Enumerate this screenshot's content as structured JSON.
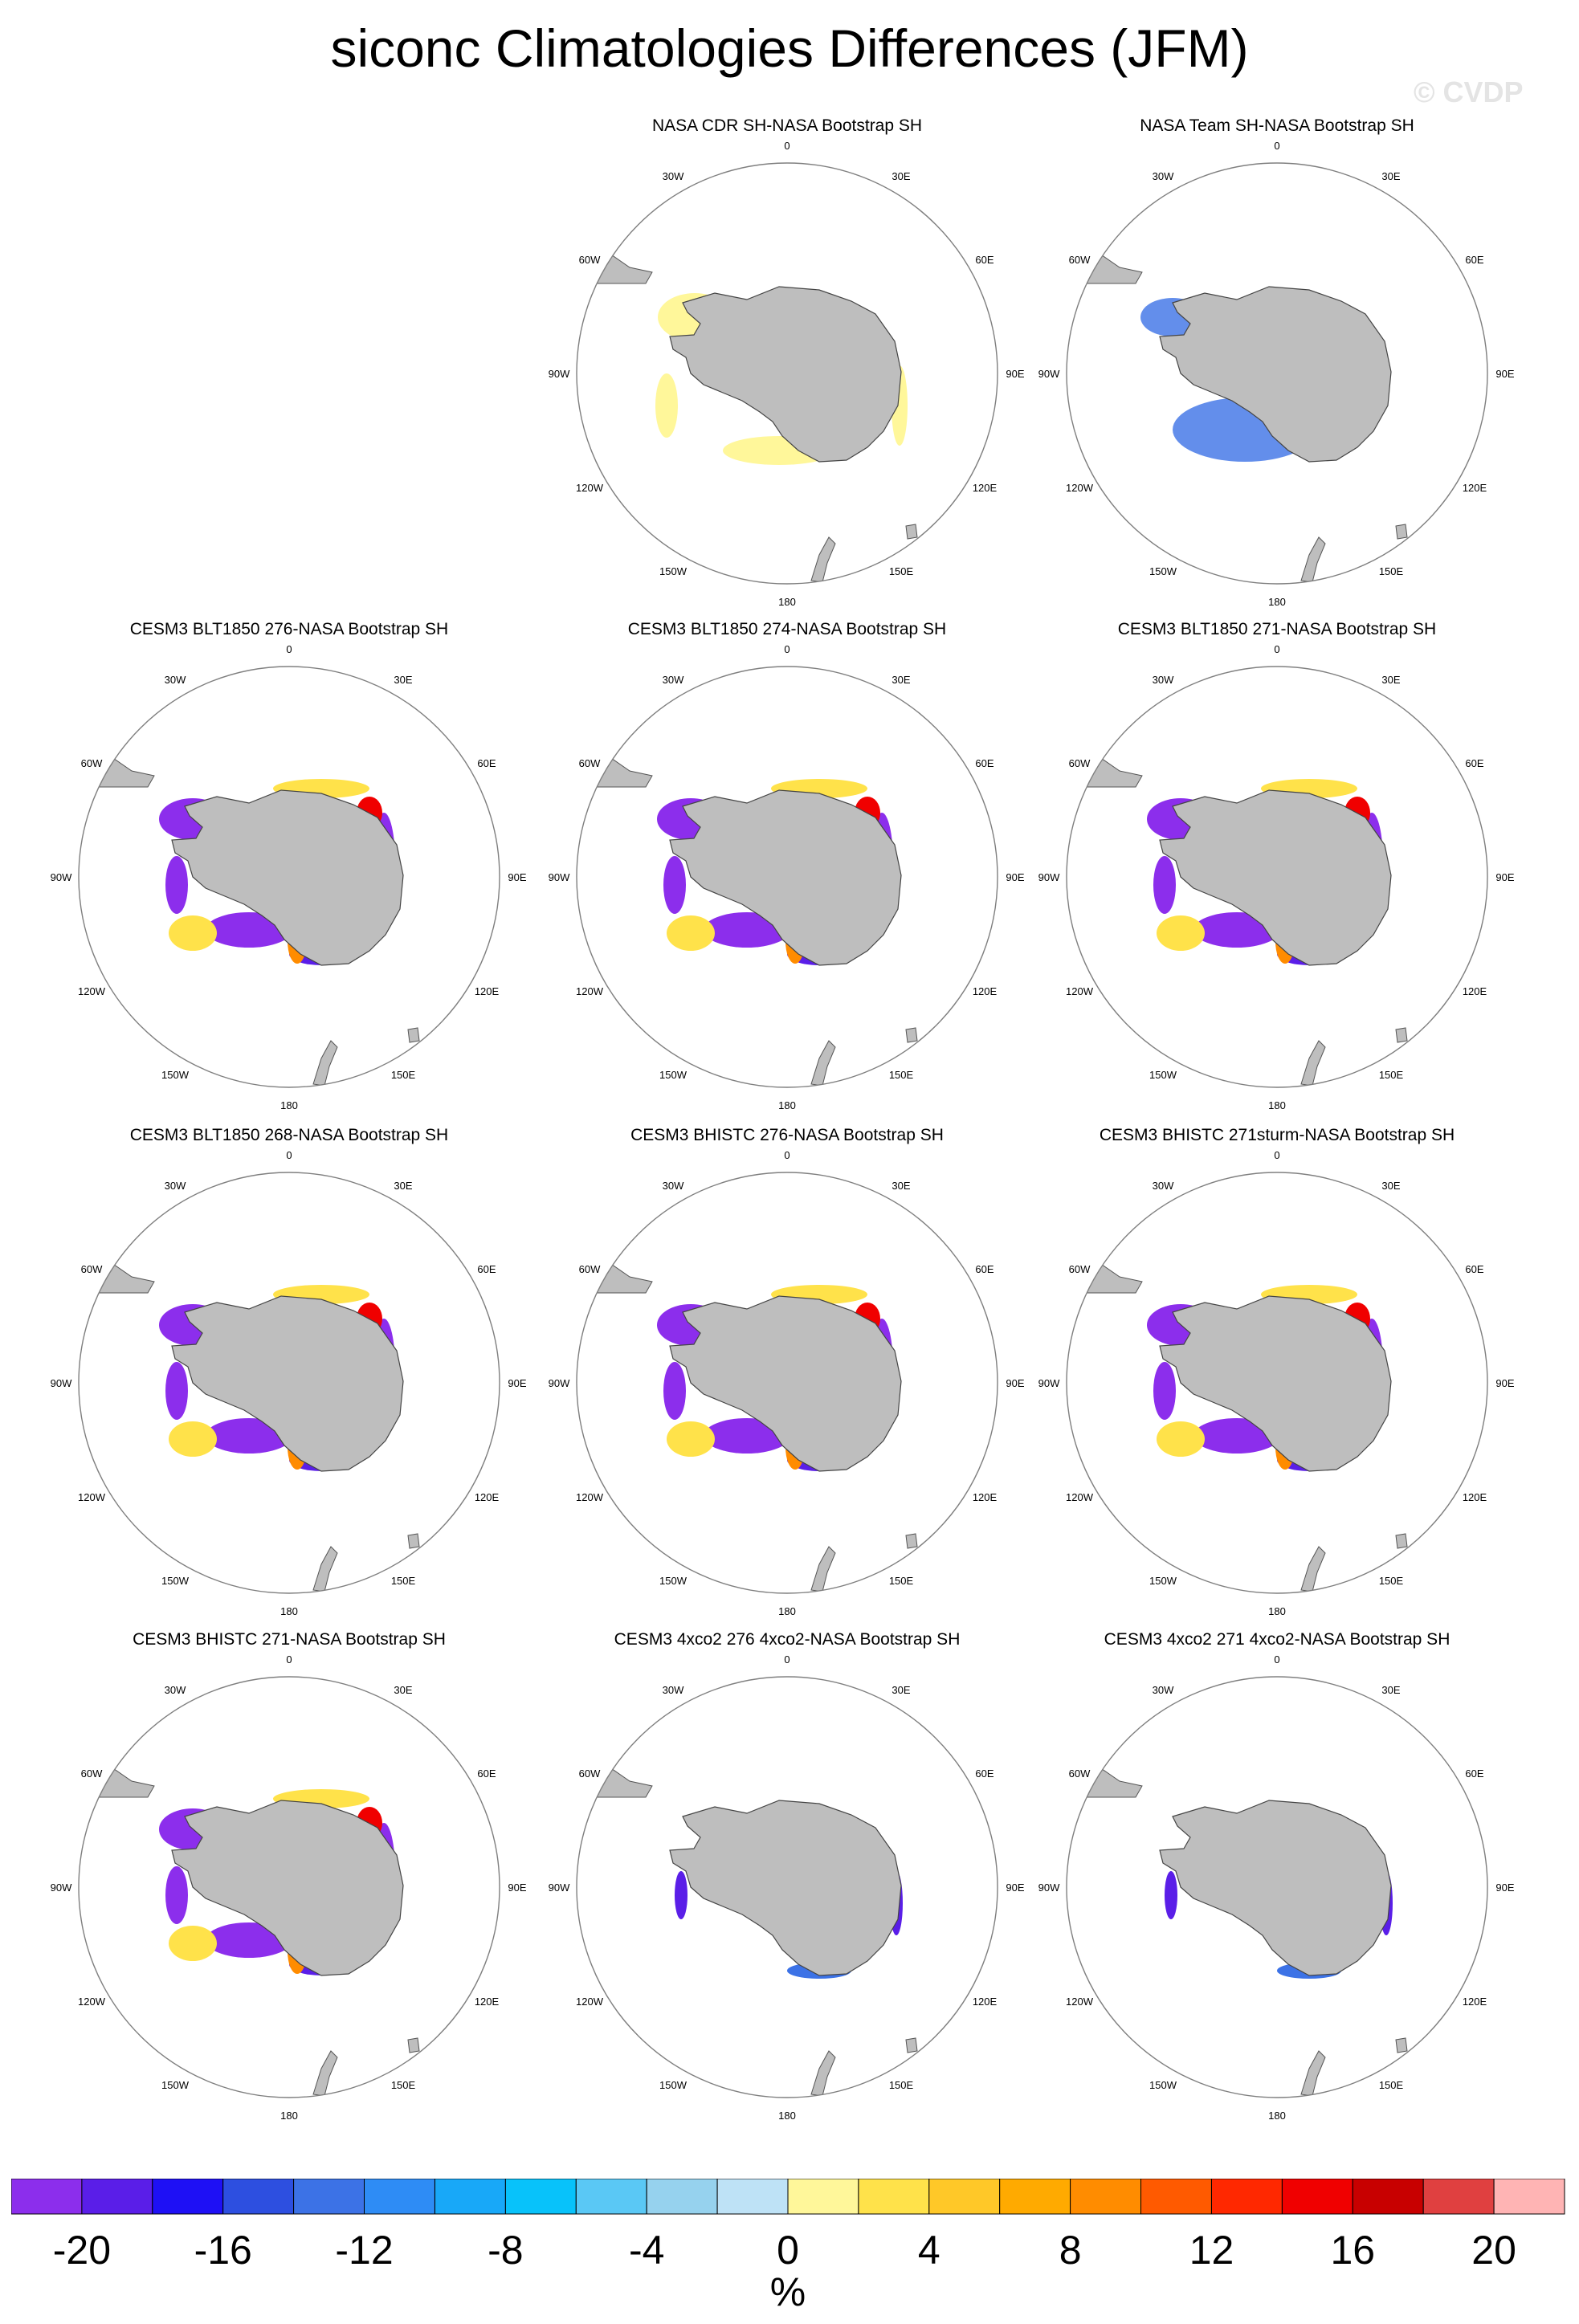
{
  "title": "siconc Climatologies Differences (JFM)",
  "watermark": "© CVDP",
  "panels": [
    {
      "title": "NASA CDR SH-NASA Bootstrap SH",
      "pattern": "cdr"
    },
    {
      "title": "NASA Team SH-NASA Bootstrap SH",
      "pattern": "team"
    },
    {
      "title": "CESM3 BLT1850 276-NASA Bootstrap SH",
      "pattern": "model"
    },
    {
      "title": "CESM3 BLT1850 274-NASA Bootstrap SH",
      "pattern": "model"
    },
    {
      "title": "CESM3 BLT1850 271-NASA Bootstrap SH",
      "pattern": "model"
    },
    {
      "title": "CESM3 BLT1850 268-NASA Bootstrap SH",
      "pattern": "model"
    },
    {
      "title": "CESM3 BHISTC 276-NASA Bootstrap SH",
      "pattern": "model"
    },
    {
      "title": "CESM3 BHISTC 271sturm-NASA Bootstrap SH",
      "pattern": "model"
    },
    {
      "title": "CESM3 BHISTC 271-NASA Bootstrap SH",
      "pattern": "model"
    },
    {
      "title": "CESM3 4xco2 276 4xco2-NASA Bootstrap SH",
      "pattern": "co2"
    },
    {
      "title": "CESM3 4xco2 271 4xco2-NASA Bootstrap SH",
      "pattern": "co2"
    }
  ],
  "lon_labels": [
    "0",
    "30E",
    "60E",
    "90E",
    "120E",
    "150E",
    "180",
    "150W",
    "120W",
    "90W",
    "60W",
    "30W"
  ],
  "colorbar": {
    "colors": [
      "#8c2eec",
      "#5a1ee8",
      "#1e10f5",
      "#2d4fe0",
      "#3c72e6",
      "#2e8cf5",
      "#18a8f8",
      "#08c2fa",
      "#5ac8f5",
      "#96d2ee",
      "#bee2f6",
      "#fff79a",
      "#ffe24a",
      "#ffc828",
      "#ffaa00",
      "#ff8c00",
      "#ff5a00",
      "#ff2800",
      "#f00000",
      "#c80000",
      "#e04040",
      "#ffb4b4"
    ],
    "labels": [
      "-20",
      "-16",
      "-12",
      "-8",
      "-4",
      "0",
      "4",
      "8",
      "12",
      "16",
      "20"
    ],
    "unit": "%"
  },
  "palette": {
    "land": "#bebebe",
    "purple": "#8c2eec",
    "violet": "#5a1ee8",
    "blue": "#3c72e6",
    "lightblue": "#5ac8f5",
    "paleblue": "#bee2f6",
    "paleyellow": "#fff79a",
    "yellow": "#ffe24a",
    "orange": "#ff8c00",
    "red": "#f00000"
  }
}
